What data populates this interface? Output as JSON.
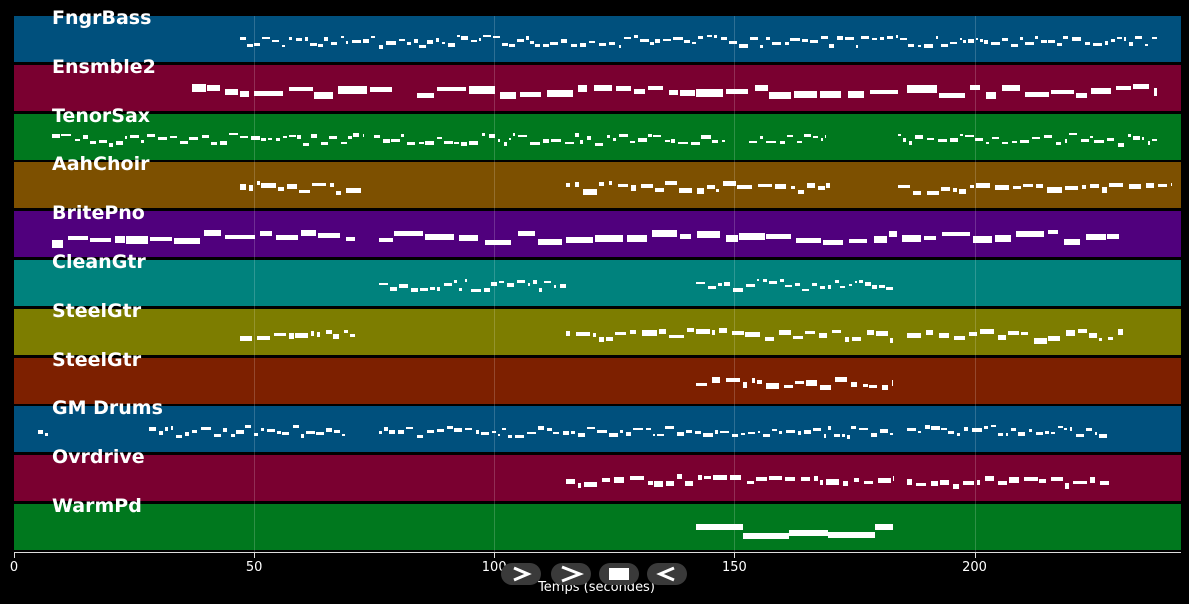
{
  "tracks": [
    {
      "name": "FngrBass",
      "color": "#00507d"
    },
    {
      "name": "Ensmble2",
      "color": "#7a0030"
    },
    {
      "name": "TenorSax",
      "color": "#00781e"
    },
    {
      "name": "AahChoir",
      "color": "#7d5000"
    },
    {
      "name": "BritePno",
      "color": "#50007d"
    },
    {
      "name": "CleanGtr",
      "color": "#00827d"
    },
    {
      "name": "SteelGtr",
      "color": "#7d7d00"
    },
    {
      "name": "SteelGtr",
      "color": "#7d2000"
    },
    {
      "name": "GM Drums",
      "color": "#00507d"
    },
    {
      "name": "Ovrdrive",
      "color": "#7a0030"
    },
    {
      "name": "WarmPd",
      "color": "#00781e"
    }
  ],
  "axis": {
    "xlabel": "Temps (secondes)",
    "xlim": [
      0,
      243
    ],
    "ticks": [
      0,
      50,
      100,
      150,
      200
    ],
    "tick_labels": [
      "0",
      "50",
      "100",
      "150",
      "200"
    ]
  },
  "controls": [
    {
      "name": "play",
      "icon": "play-icon"
    },
    {
      "name": "forward",
      "icon": "forward-icon"
    },
    {
      "name": "stop",
      "icon": "stop-icon"
    },
    {
      "name": "rewind",
      "icon": "rewind-icon"
    }
  ],
  "note_activity": [
    {
      "track": "FngrBass",
      "segments": [
        [
          47,
          238
        ]
      ],
      "style": "thin"
    },
    {
      "track": "Ensmble2",
      "segments": [
        [
          37,
          79
        ],
        [
          84,
          184
        ],
        [
          186,
          238
        ]
      ],
      "style": "blocks"
    },
    {
      "track": "TenorSax",
      "segments": [
        [
          8,
          73
        ],
        [
          75,
          148
        ],
        [
          153,
          169
        ],
        [
          184,
          238
        ]
      ],
      "style": "thin"
    },
    {
      "track": "AahChoir",
      "segments": [
        [
          47,
          73
        ],
        [
          115,
          170
        ],
        [
          184,
          241
        ]
      ],
      "style": "medium"
    },
    {
      "track": "BritePno",
      "segments": [
        [
          8,
          71
        ],
        [
          76,
          230
        ]
      ],
      "style": "blocks"
    },
    {
      "track": "CleanGtr",
      "segments": [
        [
          76,
          115
        ],
        [
          142,
          183
        ]
      ],
      "style": "thin"
    },
    {
      "track": "SteelGtr",
      "segments": [
        [
          47,
          71
        ],
        [
          115,
          183
        ],
        [
          186,
          231
        ]
      ],
      "style": "medium"
    },
    {
      "track": "SteelGtr",
      "segments": [
        [
          142,
          183
        ]
      ],
      "style": "medium"
    },
    {
      "track": "GM Drums",
      "segments": [
        [
          5,
          7
        ],
        [
          28,
          69
        ],
        [
          76,
          183
        ],
        [
          186,
          228
        ]
      ],
      "style": "thin"
    },
    {
      "track": "Ovrdrive",
      "segments": [
        [
          115,
          183
        ],
        [
          186,
          228
        ]
      ],
      "style": "medium"
    },
    {
      "track": "WarmPd",
      "segments": [
        [
          142,
          183
        ]
      ],
      "style": "solid"
    }
  ]
}
